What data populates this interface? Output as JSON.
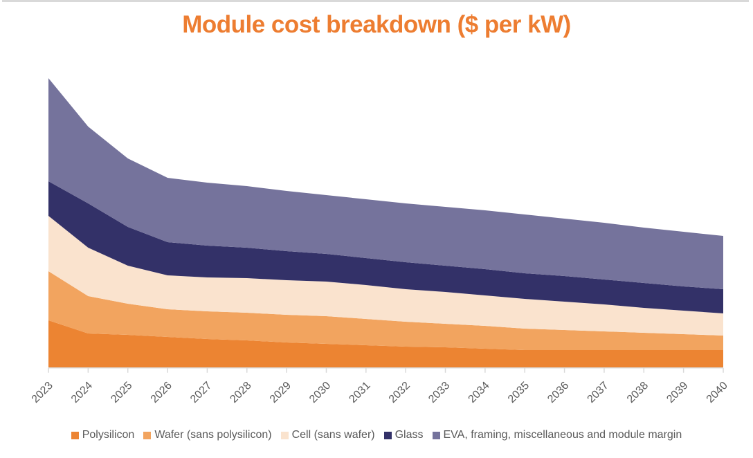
{
  "title_color": "#ED7D31",
  "axis": {
    "line_color": "#d9d9d9",
    "tick_color": "#d9d9d9",
    "label_color": "#595959",
    "label_rotation_deg": -45
  },
  "chart_data": {
    "type": "area",
    "stacked": true,
    "title": "Module cost breakdown ($ per kW)",
    "xlabel": "",
    "ylabel": "",
    "x": [
      2023,
      2024,
      2025,
      2026,
      2027,
      2028,
      2029,
      2030,
      2031,
      2032,
      2033,
      2034,
      2035,
      2036,
      2037,
      2038,
      2039,
      2040
    ],
    "x_tick_labels": [
      "2023",
      "2024",
      "2025",
      "2026",
      "2027",
      "2028",
      "2029",
      "2030",
      "2031",
      "2032",
      "2033",
      "2034",
      "2035",
      "2036",
      "2037",
      "2038",
      "2039",
      "2040"
    ],
    "y_axis_visible": false,
    "gridlines": false,
    "units_note": "y-axis unlabeled in chart; series values are estimated relative cost units read proportionally from the plot",
    "legend_position": "bottom-center",
    "series": [
      {
        "name": "Polysilicon",
        "color": "#EC8432",
        "values": [
          68,
          49,
          47,
          44,
          41,
          39,
          36,
          34,
          32,
          30,
          29,
          27,
          25,
          25,
          25,
          25,
          25,
          25
        ]
      },
      {
        "name": "Wafer (sans polysilicon)",
        "color": "#F2A45F",
        "values": [
          71,
          54,
          45,
          40,
          40,
          40,
          40,
          40,
          38,
          36,
          34,
          33,
          31,
          29,
          27,
          25,
          23,
          21
        ]
      },
      {
        "name": "Cell (sans wafer)",
        "color": "#FAE3CE",
        "values": [
          80,
          70,
          55,
          49,
          49,
          50,
          50,
          50,
          49,
          47,
          46,
          44,
          43,
          41,
          39,
          36,
          34,
          32
        ]
      },
      {
        "name": "Glass",
        "color": "#333168",
        "values": [
          50,
          64,
          56,
          48,
          46,
          44,
          42,
          40,
          39,
          39,
          38,
          38,
          37,
          37,
          36,
          36,
          35,
          35
        ]
      },
      {
        "name": "EVA, framing, miscellaneous and module margin",
        "color": "#75739C",
        "values": [
          149,
          111,
          99,
          93,
          91,
          89,
          87,
          85,
          85,
          85,
          85,
          85,
          85,
          83,
          82,
          80,
          79,
          77
        ]
      }
    ],
    "totals": [
      418,
      348,
      302,
      274,
      267,
      262,
      255,
      249,
      243,
      237,
      232,
      227,
      221,
      215,
      209,
      202,
      196,
      190
    ]
  }
}
